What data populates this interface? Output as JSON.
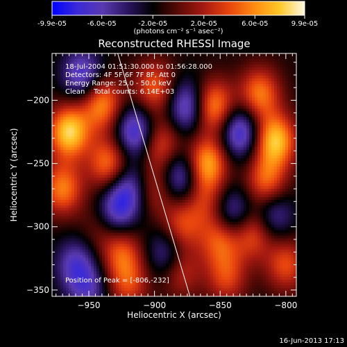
{
  "colorbar": {
    "tick_labels": [
      "-9.9e-05",
      "-6.0e-05",
      "-2.0e-05",
      "2.0e-05",
      "6.0e-05",
      "9.9e-05"
    ],
    "tick_values": [
      -9.9e-05,
      -6e-05,
      -2e-05,
      2e-05,
      6e-05,
      9.9e-05
    ],
    "range": [
      -9.9e-05,
      9.9e-05
    ],
    "unit_label": "(photons cm⁻² s⁻¹ asec⁻²)",
    "colormap": [
      "#0000ff",
      "#3a2ad8",
      "#5a3ab0",
      "#2a1560",
      "#000000",
      "#5a0a06",
      "#a51a10",
      "#e8440e",
      "#ff8a10",
      "#ffc828",
      "#fff8e0"
    ]
  },
  "chart_data": {
    "type": "heatmap",
    "title": "Reconstructed RHESSI Image",
    "xlabel": "Heliocentric X (arcsec)",
    "ylabel": "Heliocentric Y (arcsec)",
    "xlim": [
      -978,
      -792
    ],
    "ylim": [
      -355,
      -163
    ],
    "x_ticks": [
      -950,
      -900,
      -850,
      -800
    ],
    "x_tick_labels": [
      "−950",
      "−900",
      "−850",
      "−800"
    ],
    "y_ticks": [
      -200,
      -250,
      -300,
      -350
    ],
    "y_tick_labels": [
      "−200",
      "−250",
      "−300",
      "−350"
    ],
    "grid": false,
    "limb_line": [
      [
        -928,
        -163
      ],
      [
        -873,
        -355
      ]
    ],
    "sources": [
      {
        "x": -965,
        "y": -225,
        "value": 1.0
      },
      {
        "x": -970,
        "y": -270,
        "value": 0.7
      },
      {
        "x": -940,
        "y": -203,
        "value": 0.75
      },
      {
        "x": -935,
        "y": -250,
        "value": 0.7
      },
      {
        "x": -940,
        "y": -300,
        "value": 0.3
      },
      {
        "x": -925,
        "y": -320,
        "value": 0.55
      },
      {
        "x": -920,
        "y": -345,
        "value": 0.5
      },
      {
        "x": -900,
        "y": -190,
        "value": 0.6
      },
      {
        "x": -895,
        "y": -235,
        "value": 0.55
      },
      {
        "x": -900,
        "y": -270,
        "value": 0.4
      },
      {
        "x": -880,
        "y": -300,
        "value": 0.55
      },
      {
        "x": -880,
        "y": -335,
        "value": 0.45
      },
      {
        "x": -855,
        "y": -205,
        "value": 0.8
      },
      {
        "x": -860,
        "y": -250,
        "value": 0.85
      },
      {
        "x": -862,
        "y": -280,
        "value": 0.4
      },
      {
        "x": -850,
        "y": -310,
        "value": 0.6
      },
      {
        "x": -845,
        "y": -340,
        "value": 0.5
      },
      {
        "x": -820,
        "y": -195,
        "value": 0.7
      },
      {
        "x": -808,
        "y": -232,
        "value": 0.95
      },
      {
        "x": -815,
        "y": -265,
        "value": 0.65
      },
      {
        "x": -825,
        "y": -305,
        "value": 0.6
      },
      {
        "x": -800,
        "y": -330,
        "value": 0.55
      },
      {
        "x": -955,
        "y": -180,
        "value": -0.6
      },
      {
        "x": -915,
        "y": -225,
        "value": -0.7
      },
      {
        "x": -920,
        "y": -270,
        "value": -0.55
      },
      {
        "x": -930,
        "y": -290,
        "value": -0.6
      },
      {
        "x": -875,
        "y": -205,
        "value": -0.65
      },
      {
        "x": -880,
        "y": -260,
        "value": -0.6
      },
      {
        "x": -890,
        "y": -320,
        "value": -0.5
      },
      {
        "x": -835,
        "y": -225,
        "value": -0.7
      },
      {
        "x": -840,
        "y": -290,
        "value": -0.55
      },
      {
        "x": -810,
        "y": -290,
        "value": -0.5
      },
      {
        "x": -960,
        "y": -330,
        "value": -0.5
      },
      {
        "x": -950,
        "y": -350,
        "value": -0.4
      }
    ],
    "annotations": [
      "18-Jul-2004 01:51:30.000 to 01:56:28.000",
      "Detectors: 4F 5F 6F 7F 8F, Att 0",
      "Energy Range: 25.0 - 50.0 keV",
      "Clean    Total counts: 6.14E+03"
    ],
    "peak": {
      "label": "Position of Peak = [-806,-232]",
      "x": -806,
      "y": -232
    }
  },
  "footer": {
    "timestamp": "16-Jun-2013 17:13"
  }
}
